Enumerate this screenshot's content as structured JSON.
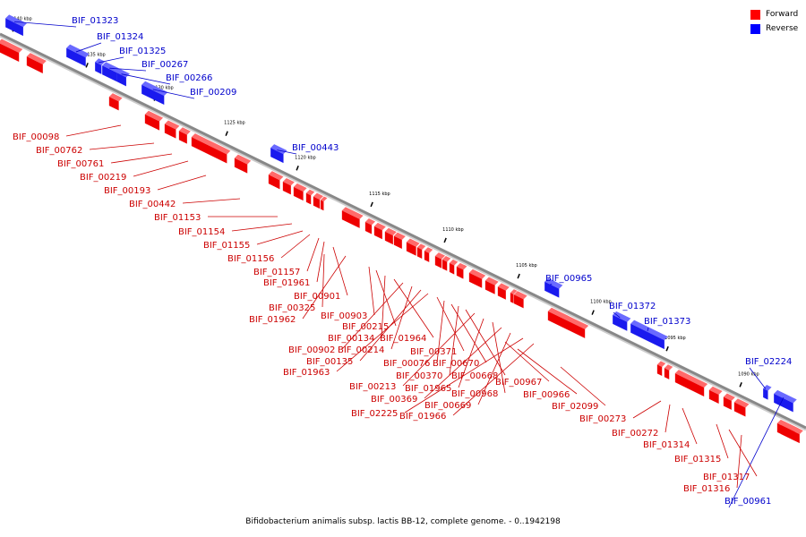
{
  "caption": "Bifidobacterium animalis subsp. lactis BB-12, complete genome. - 0..1942198",
  "legend": [
    {
      "label": "Forward",
      "color": "#ff0000"
    },
    {
      "label": "Reverse",
      "color": "#0000ff"
    }
  ],
  "colors": {
    "forward": "#ee0000",
    "reverse": "#1a1aee",
    "forward_label": "#cc0000",
    "reverse_label": "#0000cc",
    "backbone": "#888888"
  },
  "ticks": [
    "1140 kbp",
    "1135 kbp",
    "1130 kbp",
    "1125 kbp",
    "1120 kbp",
    "1115 kbp",
    "1110 kbp",
    "1105 kbp",
    "1100 kbp",
    "1095 kbp",
    "1090 kbp"
  ],
  "reverse_genes": [
    "BIF_01323",
    "BIF_01324",
    "BIF_01325",
    "BIF_00267",
    "BIF_00266",
    "BIF_00209",
    "BIF_00443",
    "BIF_00965",
    "BIF_01372",
    "BIF_01373",
    "BIF_02224",
    "BIF_00961"
  ],
  "forward_genes": [
    "BIF_00098",
    "BIF_00762",
    "BIF_00761",
    "BIF_00219",
    "BIF_00193",
    "BIF_00442",
    "BIF_01153",
    "BIF_01154",
    "BIF_01155",
    "BIF_01156",
    "BIF_01157",
    "BIF_01961",
    "BIF_00901",
    "BIF_00325",
    "BIF_01962",
    "BIF_00903",
    "BIF_00215",
    "BIF_00134",
    "BIF_01964",
    "BIF_00902",
    "BIF_00214",
    "BIF_00135",
    "BIF_01963",
    "BIF_00371",
    "BIF_00076",
    "BIF_00670",
    "BIF_00370",
    "BIF_00668",
    "BIF_00213",
    "BIF_01965",
    "BIF_00968",
    "BIF_00369",
    "BIF_00669",
    "BIF_02225",
    "BIF_01966",
    "BIF_00967",
    "BIF_00966",
    "BIF_02099",
    "BIF_00273",
    "BIF_00272",
    "BIF_01314",
    "BIF_01315",
    "BIF_01317",
    "BIF_01316"
  ]
}
